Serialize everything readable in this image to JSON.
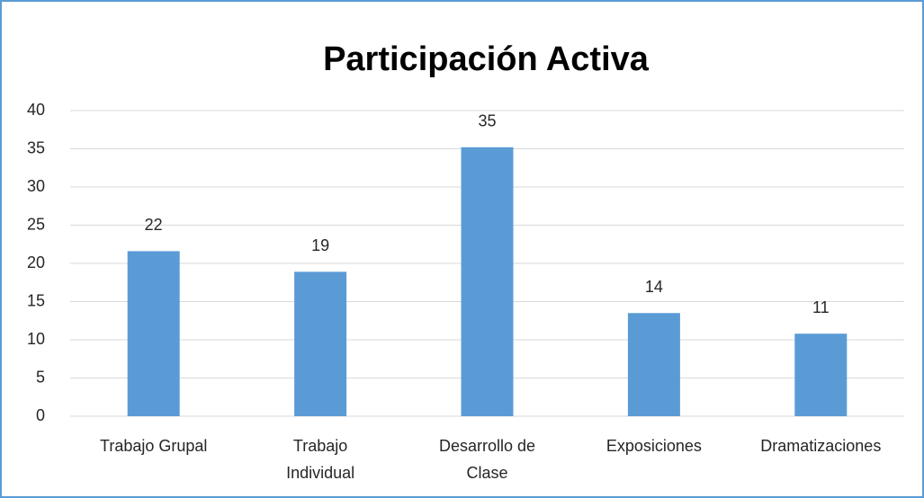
{
  "chart_data": {
    "type": "bar",
    "title": "Participación Activa",
    "categories": [
      "Trabajo Grupal",
      "Trabajo Individual",
      "Desarrollo de Clase",
      "Exposiciones",
      "Dramatizaciones"
    ],
    "values": [
      21.6,
      18.9,
      35.2,
      13.5,
      10.8
    ],
    "value_labels": [
      "22",
      "19",
      "35",
      "14",
      "11"
    ],
    "color": "#5b9bd5",
    "ylim": [
      0,
      40
    ],
    "yticks": [
      0,
      5,
      10,
      15,
      20,
      25,
      30,
      35,
      40
    ],
    "grid": true
  }
}
